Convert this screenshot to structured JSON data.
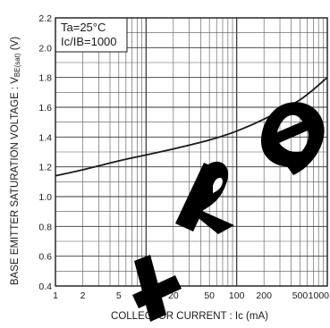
{
  "chart_data": {
    "type": "line",
    "x_scale": "log",
    "y_scale": "linear",
    "xlim": [
      1,
      1000
    ],
    "ylim": [
      0.4,
      2.2
    ],
    "grid": true,
    "xlabel": "COLLECTOR CURRENT : Ic (mA)",
    "ylabel": "BASE EMITTER SATURATION VOLTAGE : VBE(sat) (V)",
    "ylabel_parts": {
      "main": "BASE EMITTER SATURATION VOLTAGE : V",
      "subscript": "BE(sat)",
      "unit": " (V)"
    },
    "x_ticks": [
      {
        "value": 1,
        "label": "1"
      },
      {
        "value": 2,
        "label": "2"
      },
      {
        "value": 5,
        "label": "5"
      },
      {
        "value": 10,
        "label": "10"
      },
      {
        "value": 20,
        "label": "20"
      },
      {
        "value": 50,
        "label": "50"
      },
      {
        "value": 100,
        "label": "100"
      },
      {
        "value": 200,
        "label": "200"
      },
      {
        "value": 500,
        "label": "500"
      },
      {
        "value": 1000,
        "label": "1000"
      }
    ],
    "y_ticks": [
      {
        "value": 0.4,
        "label": "0.4"
      },
      {
        "value": 0.6,
        "label": "0.6"
      },
      {
        "value": 0.8,
        "label": "0.8"
      },
      {
        "value": 1.0,
        "label": "1.0"
      },
      {
        "value": 1.2,
        "label": "1.2"
      },
      {
        "value": 1.4,
        "label": "1.4"
      },
      {
        "value": 1.6,
        "label": "1.6"
      },
      {
        "value": 1.8,
        "label": "1.8"
      },
      {
        "value": 2.0,
        "label": "2.0"
      },
      {
        "value": 2.2,
        "label": "2.2"
      }
    ],
    "annotations": [
      "Ta=25°C",
      "Ic/IB=1000"
    ],
    "series": [
      {
        "color": "#1a1a1a",
        "x": [
          1,
          2,
          5,
          10,
          20,
          50,
          100,
          200,
          500,
          1000
        ],
        "y": [
          1.14,
          1.18,
          1.24,
          1.28,
          1.32,
          1.38,
          1.44,
          1.52,
          1.65,
          1.8
        ]
      }
    ],
    "watermark": {
      "color": "#000000"
    }
  }
}
